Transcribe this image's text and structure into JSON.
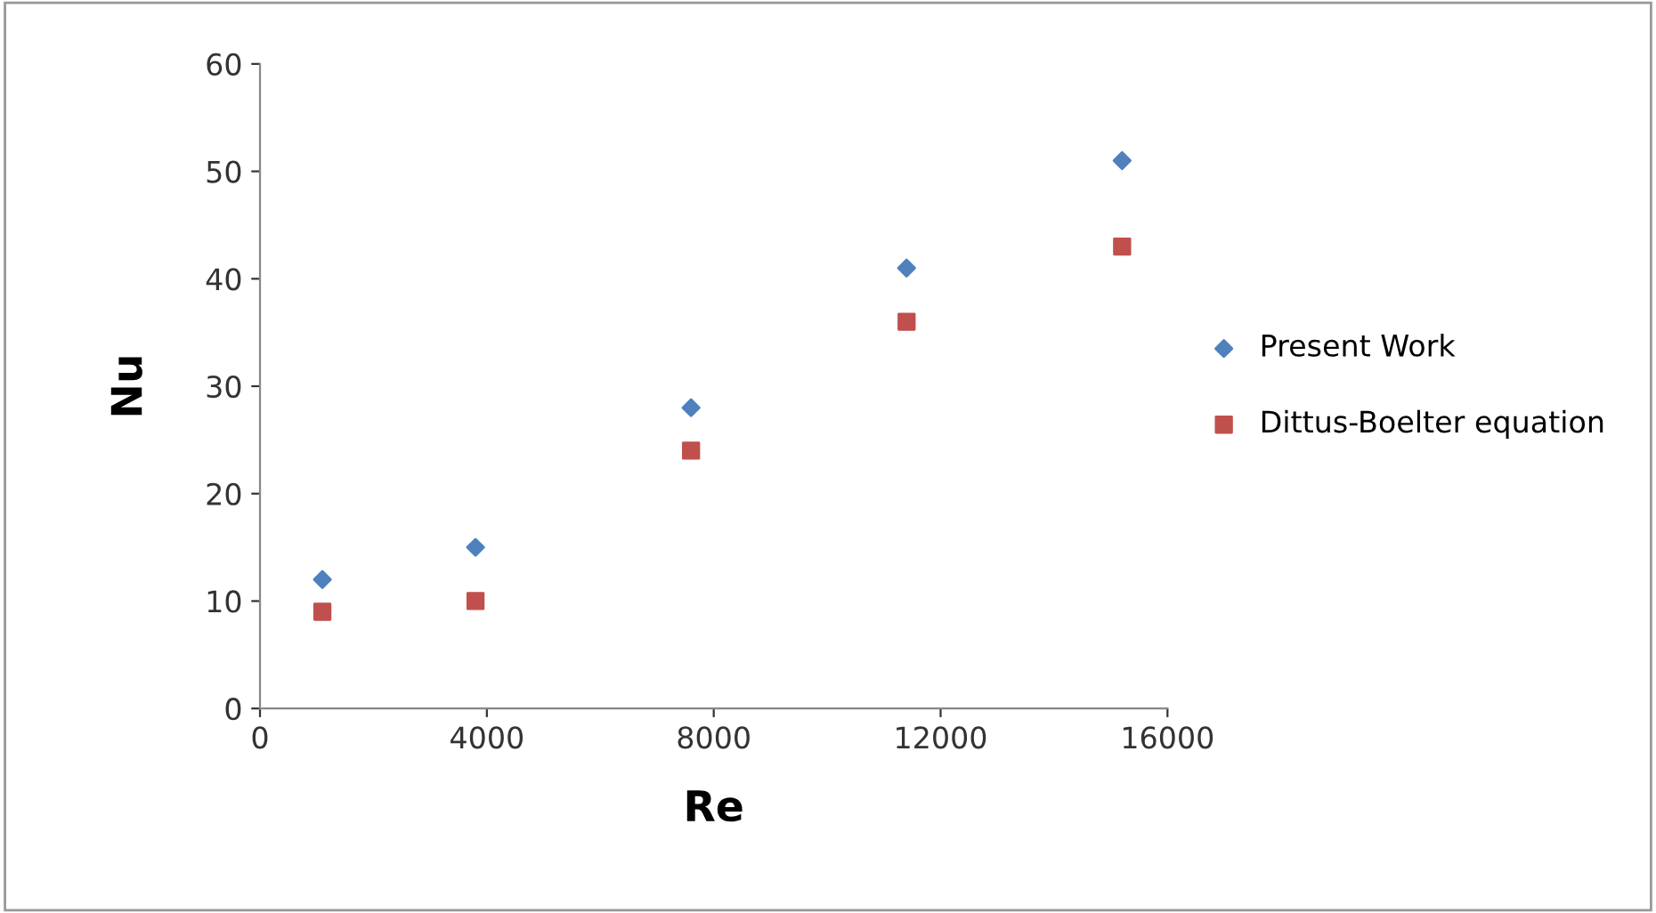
{
  "chart_data": {
    "type": "scatter",
    "xlabel": "Re",
    "ylabel": "Nu",
    "x": [
      1100,
      3800,
      7600,
      11400,
      15200
    ],
    "series": [
      {
        "name": "Present Work",
        "color": "#4f81bd",
        "marker": "diamond",
        "values": [
          12,
          15,
          28,
          41,
          51
        ]
      },
      {
        "name": "Dittus-Boelter equation",
        "color": "#c0504d",
        "marker": "square",
        "values": [
          9,
          10,
          24,
          36,
          43
        ]
      }
    ],
    "xlim": [
      0,
      16000
    ],
    "xticks": [
      0,
      4000,
      8000,
      12000,
      16000
    ],
    "ylim": [
      0,
      60
    ],
    "yticks": [
      0,
      10,
      20,
      30,
      40,
      50,
      60
    ],
    "grid": false,
    "legend": "right"
  }
}
